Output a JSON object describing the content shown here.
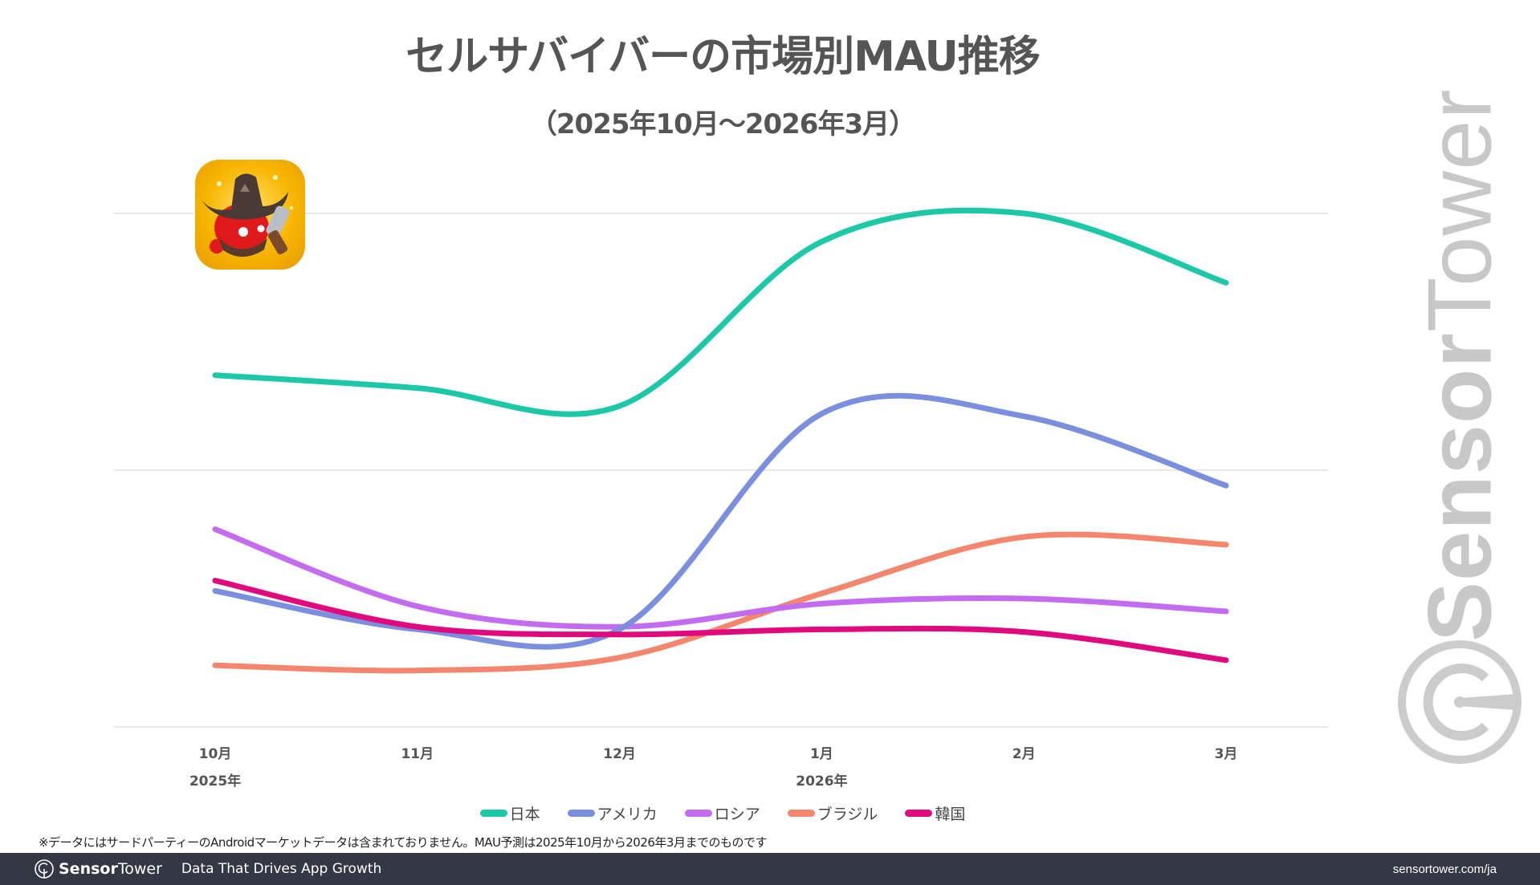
{
  "header": {
    "title": "セルサバイバーの市場別MAU推移",
    "subtitle": "（2025年10月～2026年3月）"
  },
  "app_icon": {
    "name": "app-icon",
    "description": "セルサバイバー app icon (red cell with cowboy hat and revolver)"
  },
  "chart_data": {
    "type": "line",
    "title": "セルサバイバーの市場別MAU推移",
    "subtitle": "（2025年10月～2026年3月）",
    "xlabel": "",
    "ylabel": "",
    "categories": [
      "10月",
      "11月",
      "12月",
      "1月",
      "2月",
      "3月"
    ],
    "year_labels": [
      "2025年",
      "",
      "",
      "2026年",
      "",
      ""
    ],
    "ylim": [
      0,
      2
    ],
    "y_unit": "relative (no y-axis labels shown)",
    "y_gridlines": [
      0,
      1,
      2
    ],
    "grid": true,
    "smooth": true,
    "legend_position": "bottom",
    "series": [
      {
        "name": "日本",
        "color": "#1cc8a8",
        "values": [
          1.37,
          1.32,
          1.25,
          1.89,
          2.0,
          1.73
        ]
      },
      {
        "name": "アメリカ",
        "color": "#7b8fdf",
        "values": [
          0.53,
          0.38,
          0.38,
          1.22,
          1.21,
          0.94
        ]
      },
      {
        "name": "ロシア",
        "color": "#c46cf0",
        "values": [
          0.77,
          0.47,
          0.39,
          0.48,
          0.5,
          0.45
        ]
      },
      {
        "name": "ブラジル",
        "color": "#f5866e",
        "values": [
          0.24,
          0.22,
          0.27,
          0.52,
          0.74,
          0.71
        ]
      },
      {
        "name": "韓国",
        "color": "#e0097d",
        "values": [
          0.57,
          0.39,
          0.36,
          0.38,
          0.37,
          0.26
        ]
      }
    ]
  },
  "note": "※データにはサードパーティーのAndroidマーケットデータは含まれておりません。MAU予測は2025年10月から2026年3月までのものです",
  "footer": {
    "logo_bold": "Sensor",
    "logo_regular": "Tower",
    "tagline": "Data That Drives App Growth",
    "url": "sensortower.com/ja"
  },
  "watermark": {
    "bold": "Sensor",
    "regular": "Tower"
  }
}
